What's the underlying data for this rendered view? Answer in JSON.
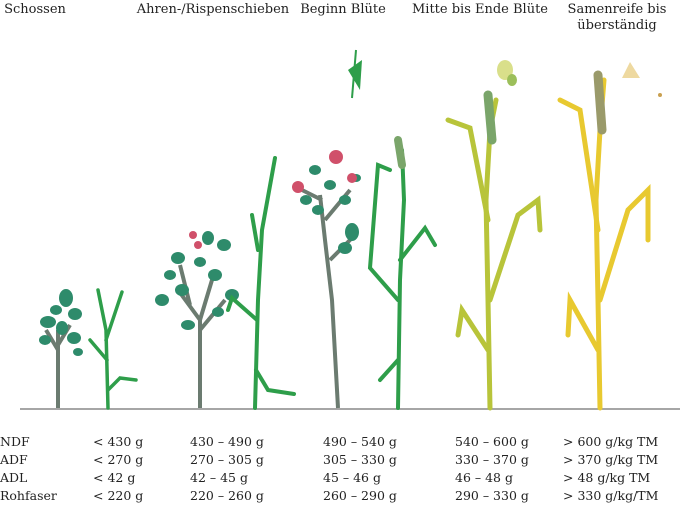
{
  "stages": [
    "Schossen",
    "Ahren-/Rispenschieben",
    "Beginn Blüte",
    "Mitte bis Ende Blüte",
    [
      "Samenreife bis",
      "überständig"
    ]
  ],
  "table": {
    "rows": [
      [
        "NDF",
        "< 430 g",
        "430 – 490 g",
        "490 – 540 g",
        "540 – 600 g",
        "> 600 g/kg TM"
      ],
      [
        "ADF",
        "< 270 g",
        "270 – 305 g",
        "305 – 330 g",
        "330 – 370 g",
        "> 370 g/kg TM"
      ],
      [
        "ADL",
        "< 42 g",
        "42 – 45 g",
        "45 – 46 g",
        "46 – 48 g",
        "> 48 g/kg TM"
      ],
      [
        "Rohfaser",
        "< 220 g",
        "220 – 260 g",
        "260 – 290 g",
        "290 – 330 g",
        "> 330 g/kg/TM"
      ]
    ]
  }
}
